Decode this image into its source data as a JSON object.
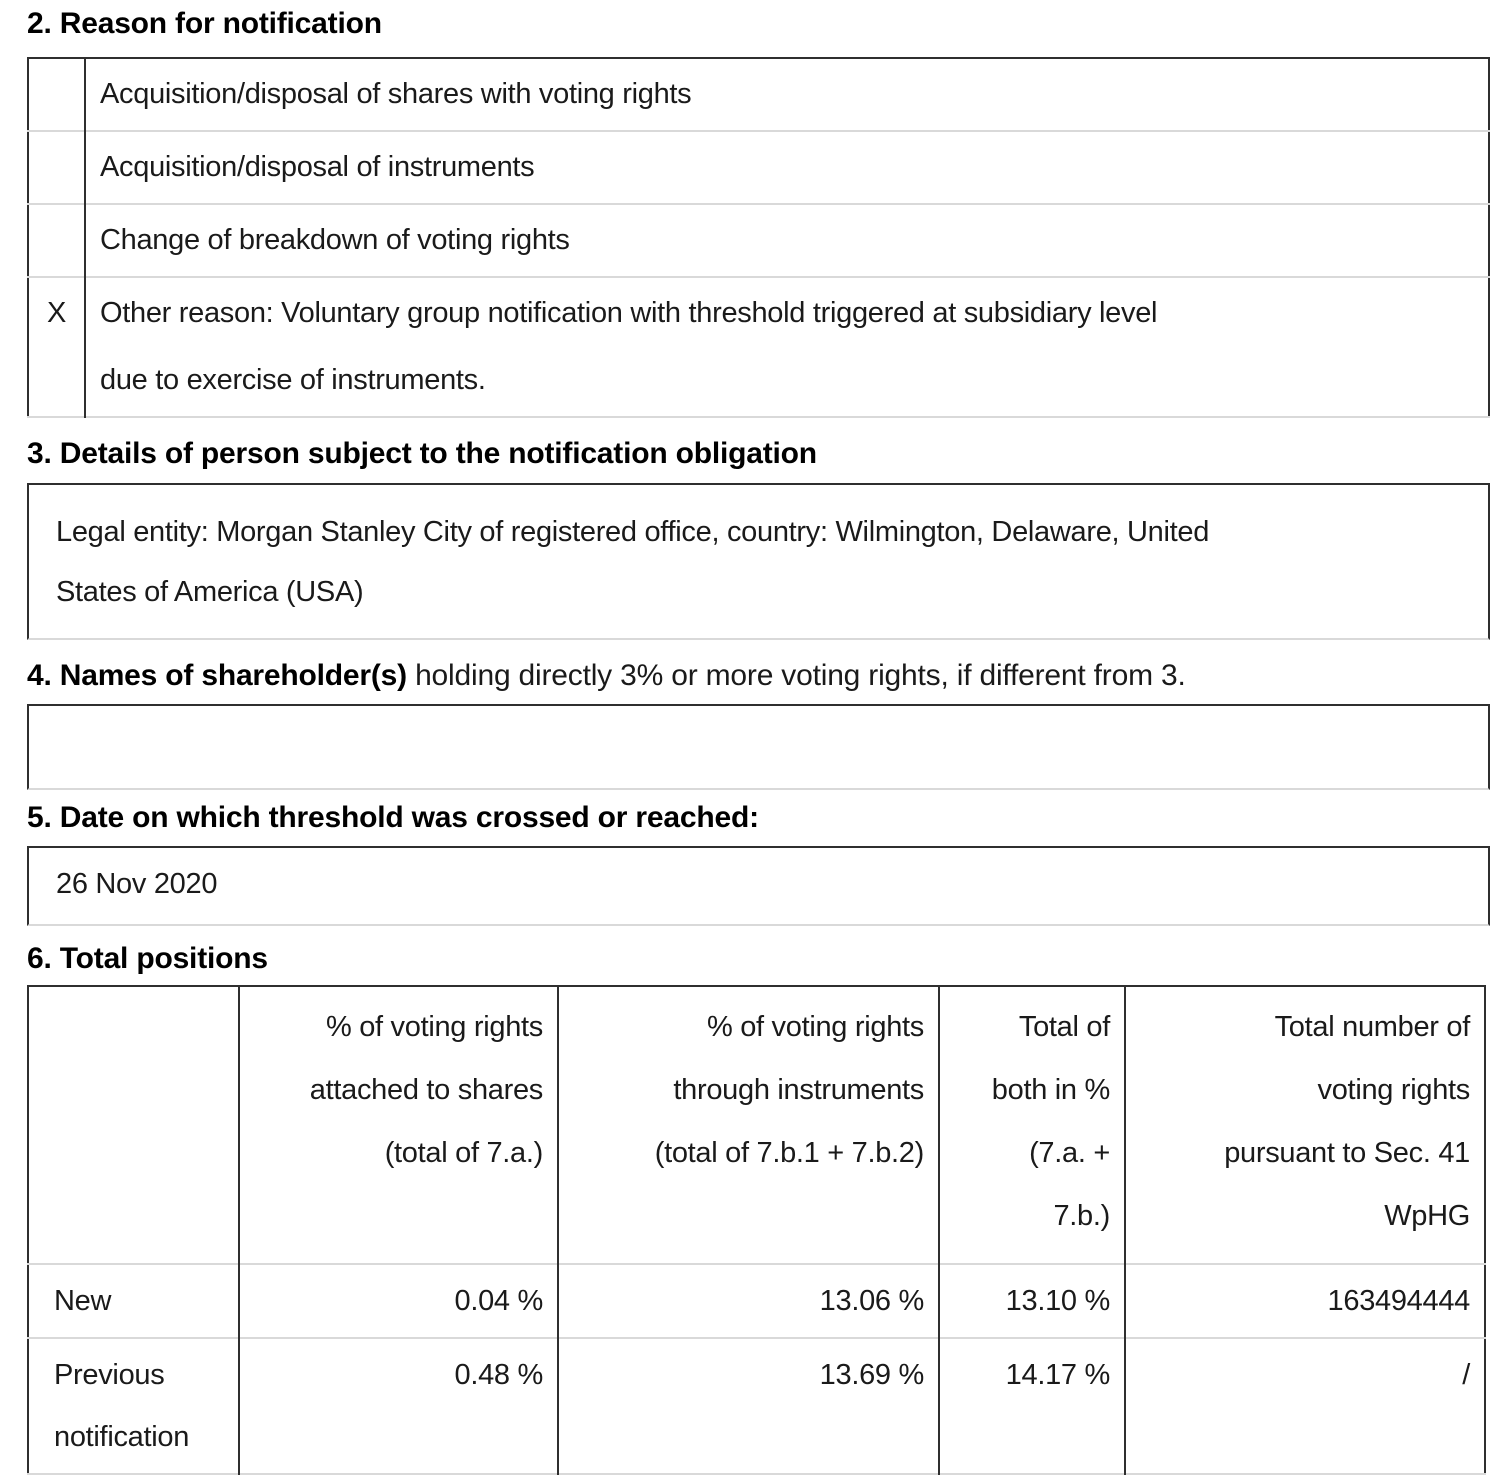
{
  "colors": {
    "border_dark": "#2f2f2f",
    "border_light": "#d9d9d9",
    "text": "#1a1a1a",
    "background": "#ffffff"
  },
  "sections": {
    "reason": {
      "heading": "2. Reason for notification",
      "rows": [
        {
          "checked": "",
          "label": "Acquisition/disposal of shares with voting rights"
        },
        {
          "checked": "",
          "label": "Acquisition/disposal of instruments"
        },
        {
          "checked": "",
          "label": "Change of breakdown of voting rights"
        },
        {
          "checked": "X",
          "label": "Other reason: Voluntary group notification with threshold triggered at subsidiary level\ndue to exercise of instruments."
        }
      ]
    },
    "person": {
      "heading": "3. Details of person subject to the notification obligation",
      "content": "Legal entity: Morgan Stanley City of registered office, country: Wilmington, Delaware, United\nStates of America (USA)"
    },
    "shareholders": {
      "heading_bold": "4. Names of shareholder(s)",
      "heading_rest": " holding directly 3% or more voting rights, if different from 3.",
      "content": ""
    },
    "date": {
      "heading": "5. Date on which threshold was crossed or reached:",
      "content": "26 Nov 2020"
    },
    "totals": {
      "heading": "6. Total positions",
      "col_headers": {
        "label": "",
        "shares": "% of voting rights\nattached to shares\n(total of 7.a.)",
        "instruments": "% of voting rights\nthrough instruments\n(total of 7.b.1 + 7.b.2)",
        "both": "Total of\nboth in %\n(7.a. +\n7.b.)",
        "number": "Total number of\nvoting rights\npursuant to Sec. 41\nWpHG"
      },
      "rows": [
        {
          "label": "New",
          "shares_pct": "0.04 %",
          "instruments_pct": "13.06 %",
          "total_pct": "13.10 %",
          "total_number": "163494444"
        },
        {
          "label": "Previous notification",
          "shares_pct": "0.48 %",
          "instruments_pct": "13.69 %",
          "total_pct": "14.17 %",
          "total_number": "/"
        }
      ]
    }
  }
}
